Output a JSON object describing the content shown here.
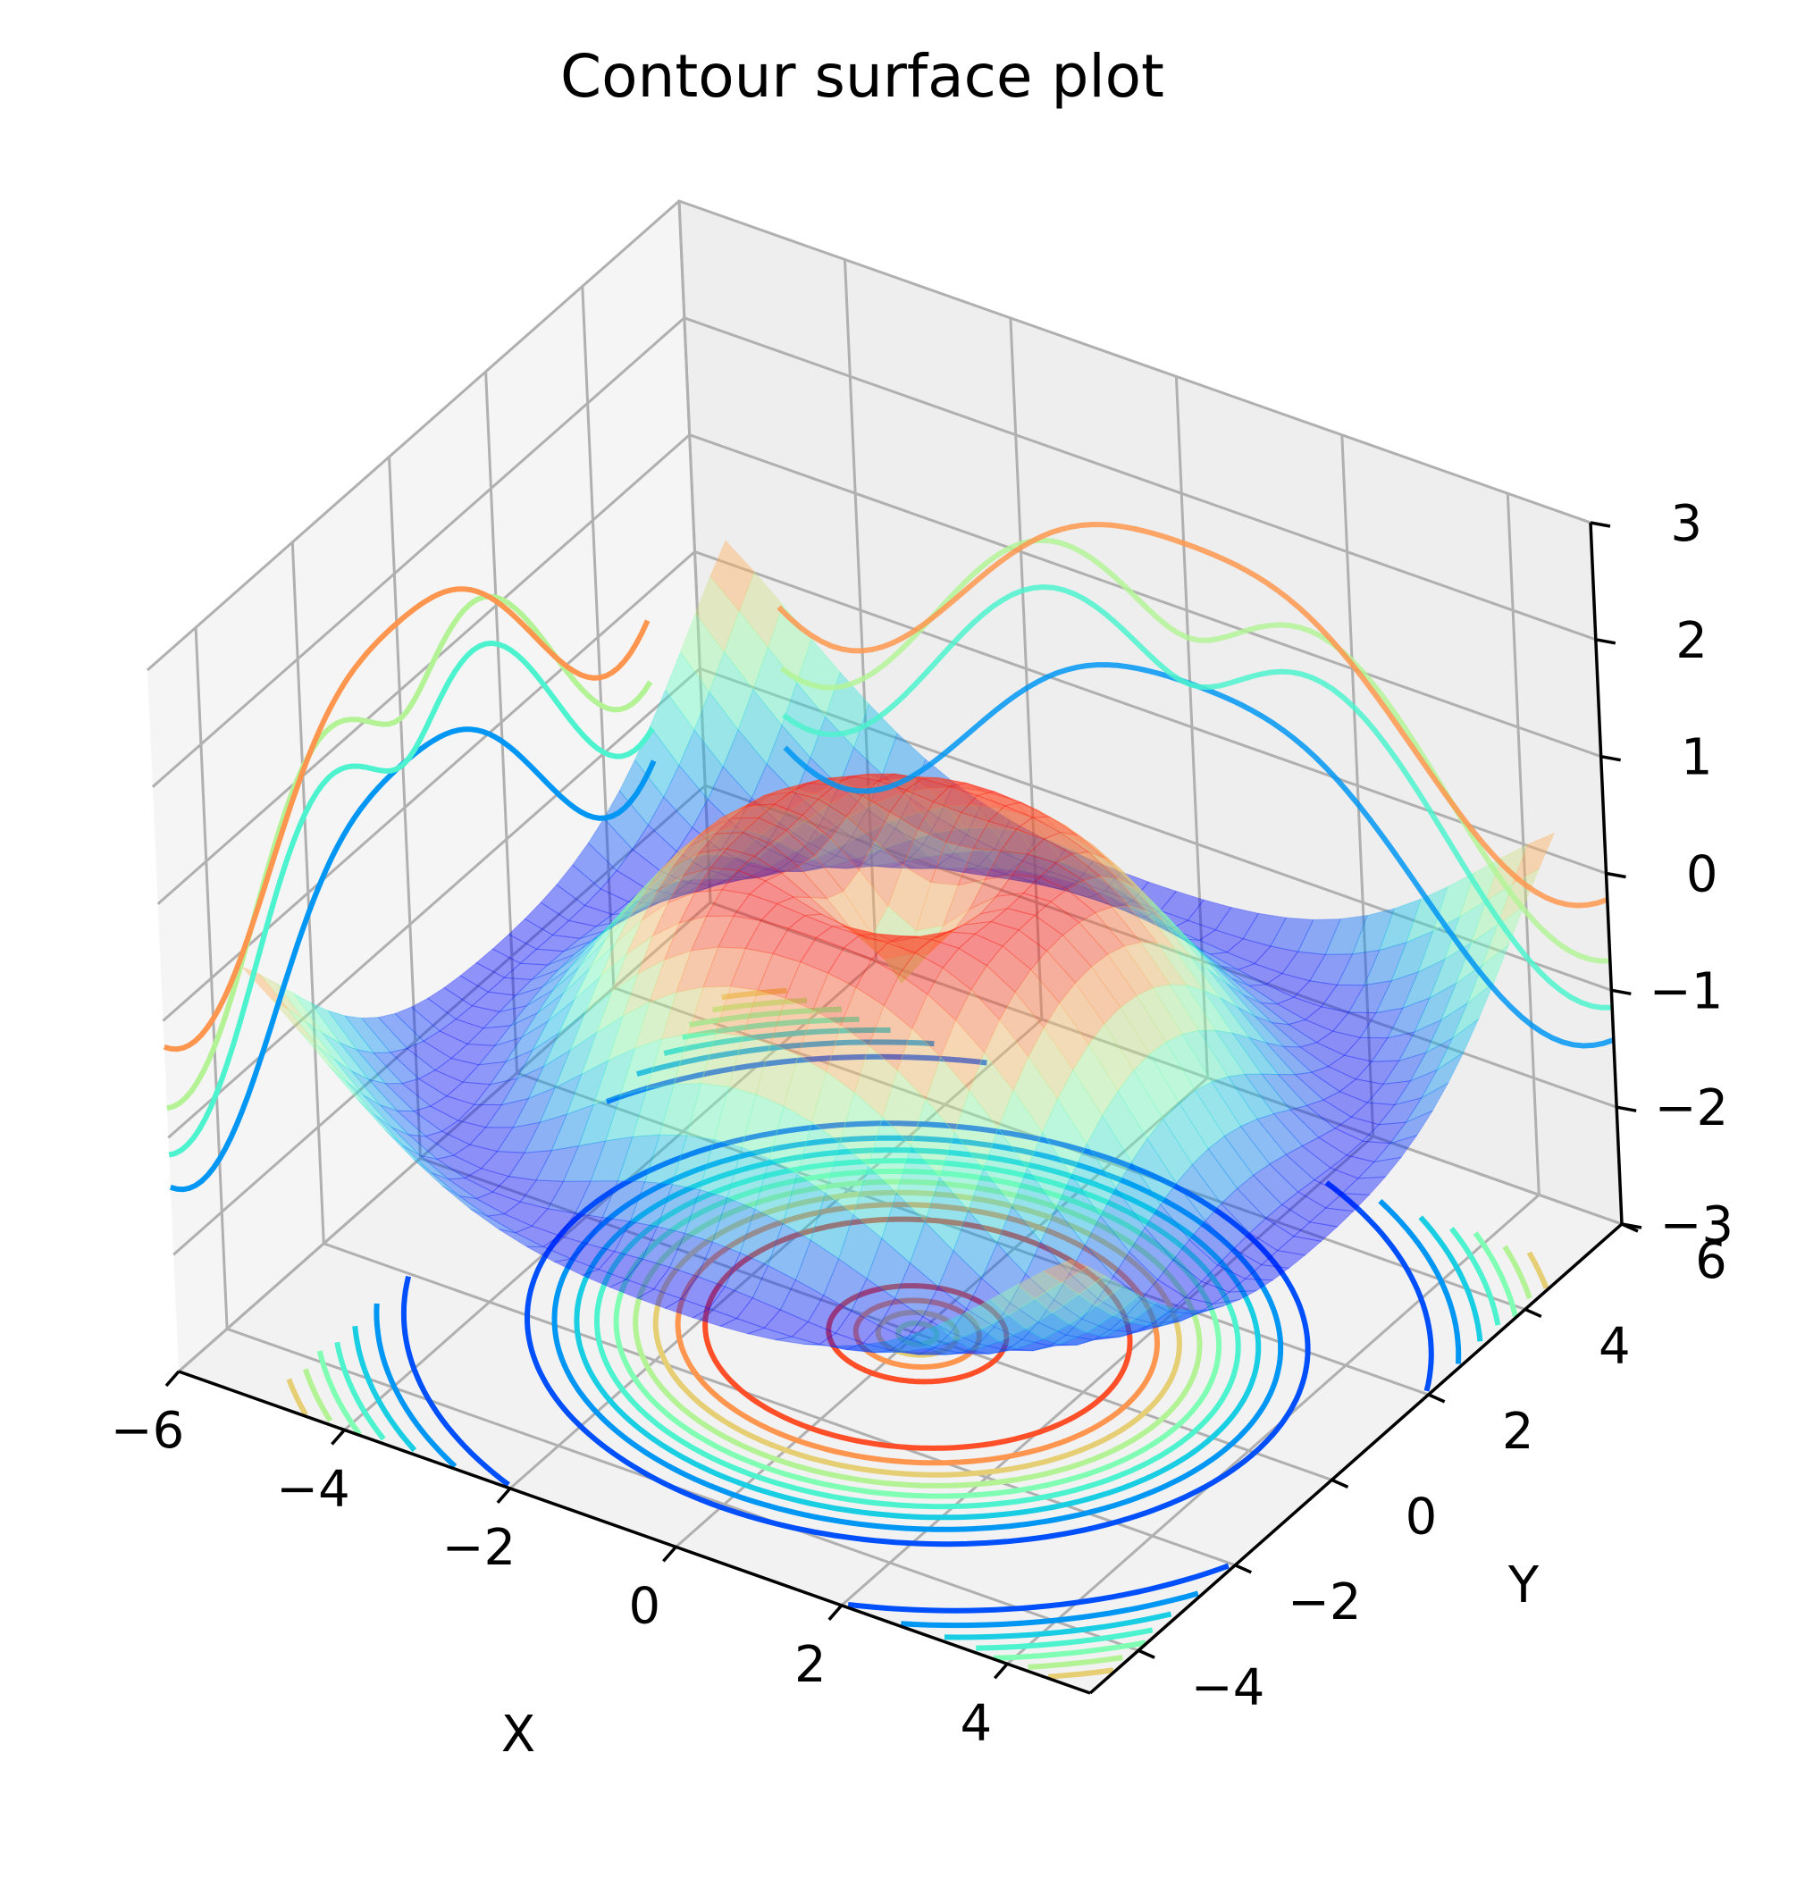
{
  "chart_data": {
    "type": "surface3d",
    "title": "Contour surface plot",
    "xlabel": "X",
    "ylabel": "Y",
    "zlabel": "",
    "xlim": [
      -6,
      5
    ],
    "ylim": [
      -5,
      6
    ],
    "zlim": [
      -3,
      3
    ],
    "x_ticks": [
      "−6",
      "−4",
      "−2",
      "0",
      "2",
      "4"
    ],
    "y_ticks": [
      "−4",
      "−2",
      "0",
      "2",
      "4",
      "6"
    ],
    "z_ticks": [
      "−3",
      "−2",
      "−1",
      "0",
      "1",
      "2",
      "3"
    ],
    "colormap": "rainbow",
    "grid": true,
    "surface": "z = sin(sqrt(x^2 + y^2)), x,y in [-5,5]",
    "contour_projections": [
      "z (floor)",
      "x (back wall)",
      "y (back wall)"
    ],
    "contour_levels": [
      -0.8,
      -0.6,
      -0.4,
      -0.2,
      0.0,
      0.2,
      0.4,
      0.6,
      0.8
    ],
    "colors": {
      "pane": "#f2f2f2",
      "grid": "#b0b0b0",
      "low": "#5a3cff",
      "mid": "#7fffb0",
      "high": "#ff3a1a"
    }
  }
}
